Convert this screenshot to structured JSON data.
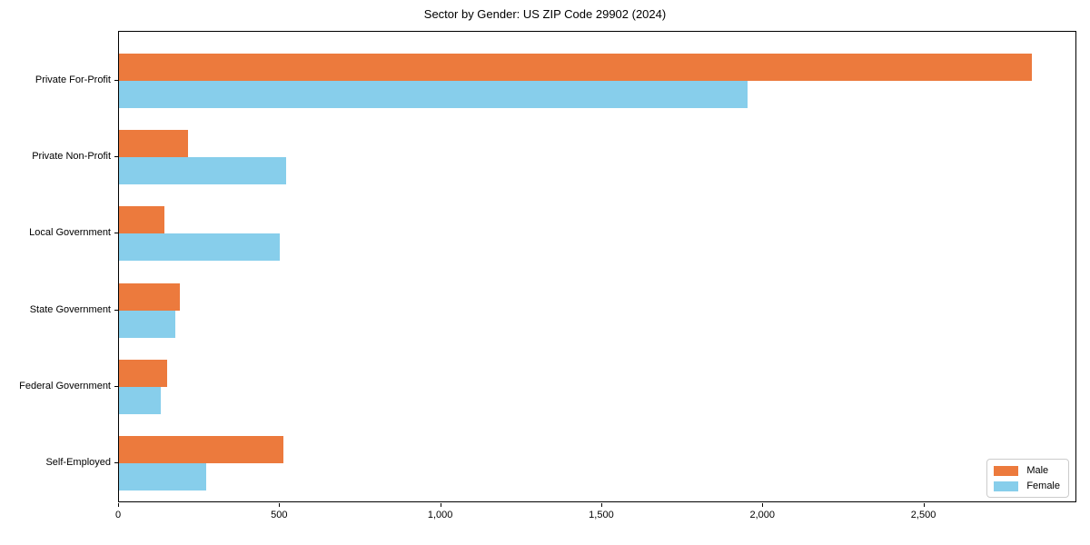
{
  "chart_data": {
    "type": "bar",
    "orientation": "horizontal",
    "title": "Sector by Gender: US ZIP Code 29902 (2024)",
    "categories": [
      "Private For-Profit",
      "Private Non-Profit",
      "Local Government",
      "State Government",
      "Federal Government",
      "Self-Employed"
    ],
    "series": [
      {
        "name": "Male",
        "color": "#ec7a3d",
        "values": [
          2835,
          215,
          140,
          188,
          150,
          510
        ]
      },
      {
        "name": "Female",
        "color": "#87ceeb",
        "values": [
          1950,
          520,
          500,
          175,
          130,
          270
        ]
      }
    ],
    "xlabel": "",
    "ylabel": "",
    "xlim": [
      0,
      2975
    ],
    "xticks": [
      0,
      500,
      1000,
      1500,
      2000,
      2500
    ],
    "xtick_labels": [
      "0",
      "500",
      "1,000",
      "1,500",
      "2,000",
      "2,500"
    ],
    "grid": false,
    "legend": {
      "position": "lower right"
    }
  }
}
